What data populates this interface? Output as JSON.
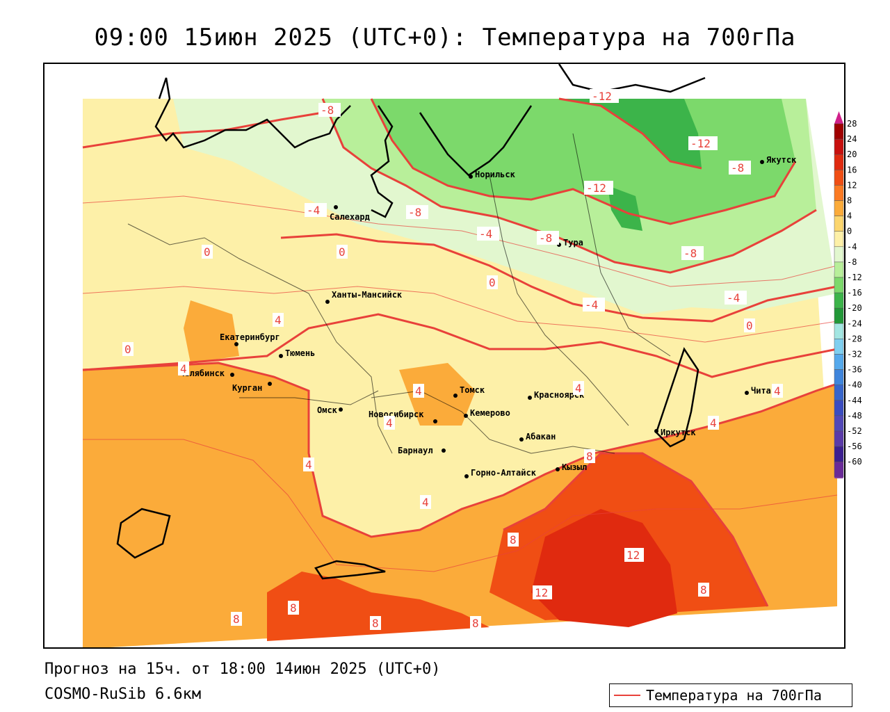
{
  "title": "09:00 15июн 2025 (UTC+0): Температура на 700гПа",
  "footer": {
    "forecast": "Прогноз на 15ч. от 18:00 14июн 2025 (UTC+0)",
    "model": "COSMO-RuSib 6.6км"
  },
  "legend": {
    "label": "Температура на 700гПа",
    "line_color": "#e8413a"
  },
  "colorbar": {
    "levels": [
      "28",
      "24",
      "20",
      "16",
      "12",
      "8",
      "4",
      "0",
      "-4",
      "-8",
      "-12",
      "-16",
      "-20",
      "-24",
      "-28",
      "-32",
      "-36",
      "-40",
      "-44",
      "-48",
      "-52",
      "-56",
      "-60"
    ],
    "colors": [
      "#a00000",
      "#c8100e",
      "#e02a0f",
      "#f04e14",
      "#fb7a22",
      "#fbab3a",
      "#fcd66e",
      "#fdf0a8",
      "#e2f7cf",
      "#b8ef9a",
      "#7cd96b",
      "#3cb44a",
      "#229838",
      "#a3e6e2",
      "#7fcff0",
      "#55a9ec",
      "#3f85dc",
      "#3766cc",
      "#3a4cc0",
      "#5248b8",
      "#5a3aa8",
      "#3c1f90",
      "#6a2a98"
    ]
  },
  "cities": [
    {
      "name": "Якутск"
    },
    {
      "name": "Норильск"
    },
    {
      "name": "Салехард"
    },
    {
      "name": "Тура"
    },
    {
      "name": "Ханты-Мансийск"
    },
    {
      "name": "Екатеринбург"
    },
    {
      "name": "Тюмень"
    },
    {
      "name": "Челябинск"
    },
    {
      "name": "Курган"
    },
    {
      "name": "Омск"
    },
    {
      "name": "Новосибирск"
    },
    {
      "name": "Томск"
    },
    {
      "name": "Кемерово"
    },
    {
      "name": "Красноярск"
    },
    {
      "name": "Абакан"
    },
    {
      "name": "Барнаул"
    },
    {
      "name": "Горно-Алтайск"
    },
    {
      "name": "Кызыл"
    },
    {
      "name": "Иркутск"
    },
    {
      "name": "Чита"
    }
  ],
  "isotherm_labels": [
    "-12",
    "-12",
    "-12",
    "-8",
    "-8",
    "-8",
    "-8",
    "-8",
    "-4",
    "-4",
    "-4",
    "-4",
    "0",
    "0",
    "0",
    "0",
    "0",
    "4",
    "4",
    "4",
    "4",
    "4",
    "4",
    "4",
    "4",
    "4",
    "8",
    "8",
    "8",
    "8",
    "8",
    "8",
    "8",
    "12",
    "12"
  ]
}
